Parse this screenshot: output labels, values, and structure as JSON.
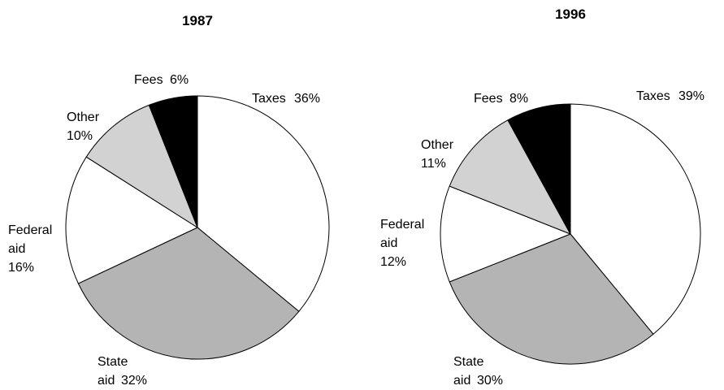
{
  "chart_data": [
    {
      "type": "pie",
      "title": "1987",
      "categories": [
        "Taxes",
        "State aid",
        "Federal aid",
        "Other",
        "Fees"
      ],
      "values": [
        36,
        32,
        16,
        10,
        6
      ],
      "value_labels": [
        "36%",
        "32%",
        "16%",
        "10%",
        "6%"
      ],
      "colors": [
        "#ffffff",
        "#b4b4b4",
        "#ffffff",
        "#d2d2d2",
        "#000000"
      ]
    },
    {
      "type": "pie",
      "title": "1996",
      "categories": [
        "Taxes",
        "State aid",
        "Federal aid",
        "Other",
        "Fees"
      ],
      "values": [
        39,
        30,
        12,
        11,
        8
      ],
      "value_labels": [
        "39%",
        "30%",
        "12%",
        "11%",
        "8%"
      ],
      "colors": [
        "#ffffff",
        "#b4b4b4",
        "#ffffff",
        "#d2d2d2",
        "#000000"
      ]
    }
  ]
}
